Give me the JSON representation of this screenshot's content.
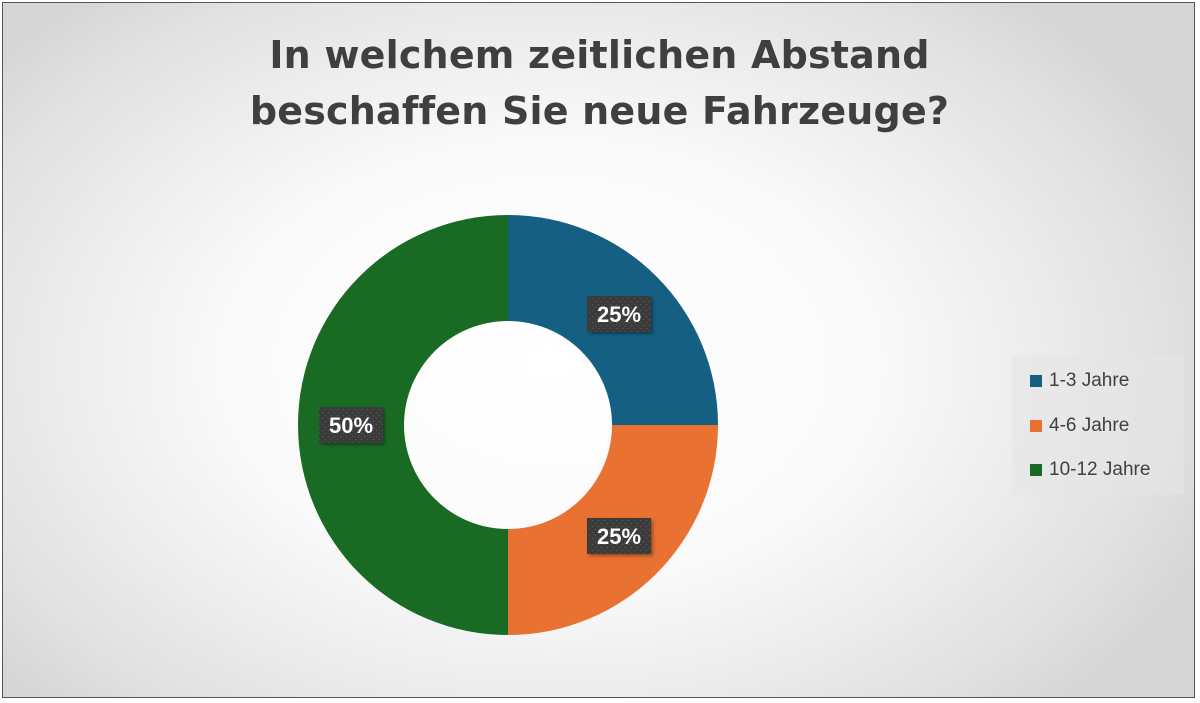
{
  "chart_data": {
    "type": "donut",
    "title": [
      "In welchem zeitlichen Abstand",
      "beschaffen Sie neue Fahrzeuge?"
    ],
    "categories": [
      "1-3 Jahre",
      "4-6 Jahre",
      "10-12 Jahre"
    ],
    "values": [
      25,
      25,
      50
    ],
    "data_labels": [
      "25%",
      "25%",
      "50%"
    ],
    "colors": [
      "#156082",
      "#E97132",
      "#196B24"
    ],
    "legend_position": "right"
  }
}
